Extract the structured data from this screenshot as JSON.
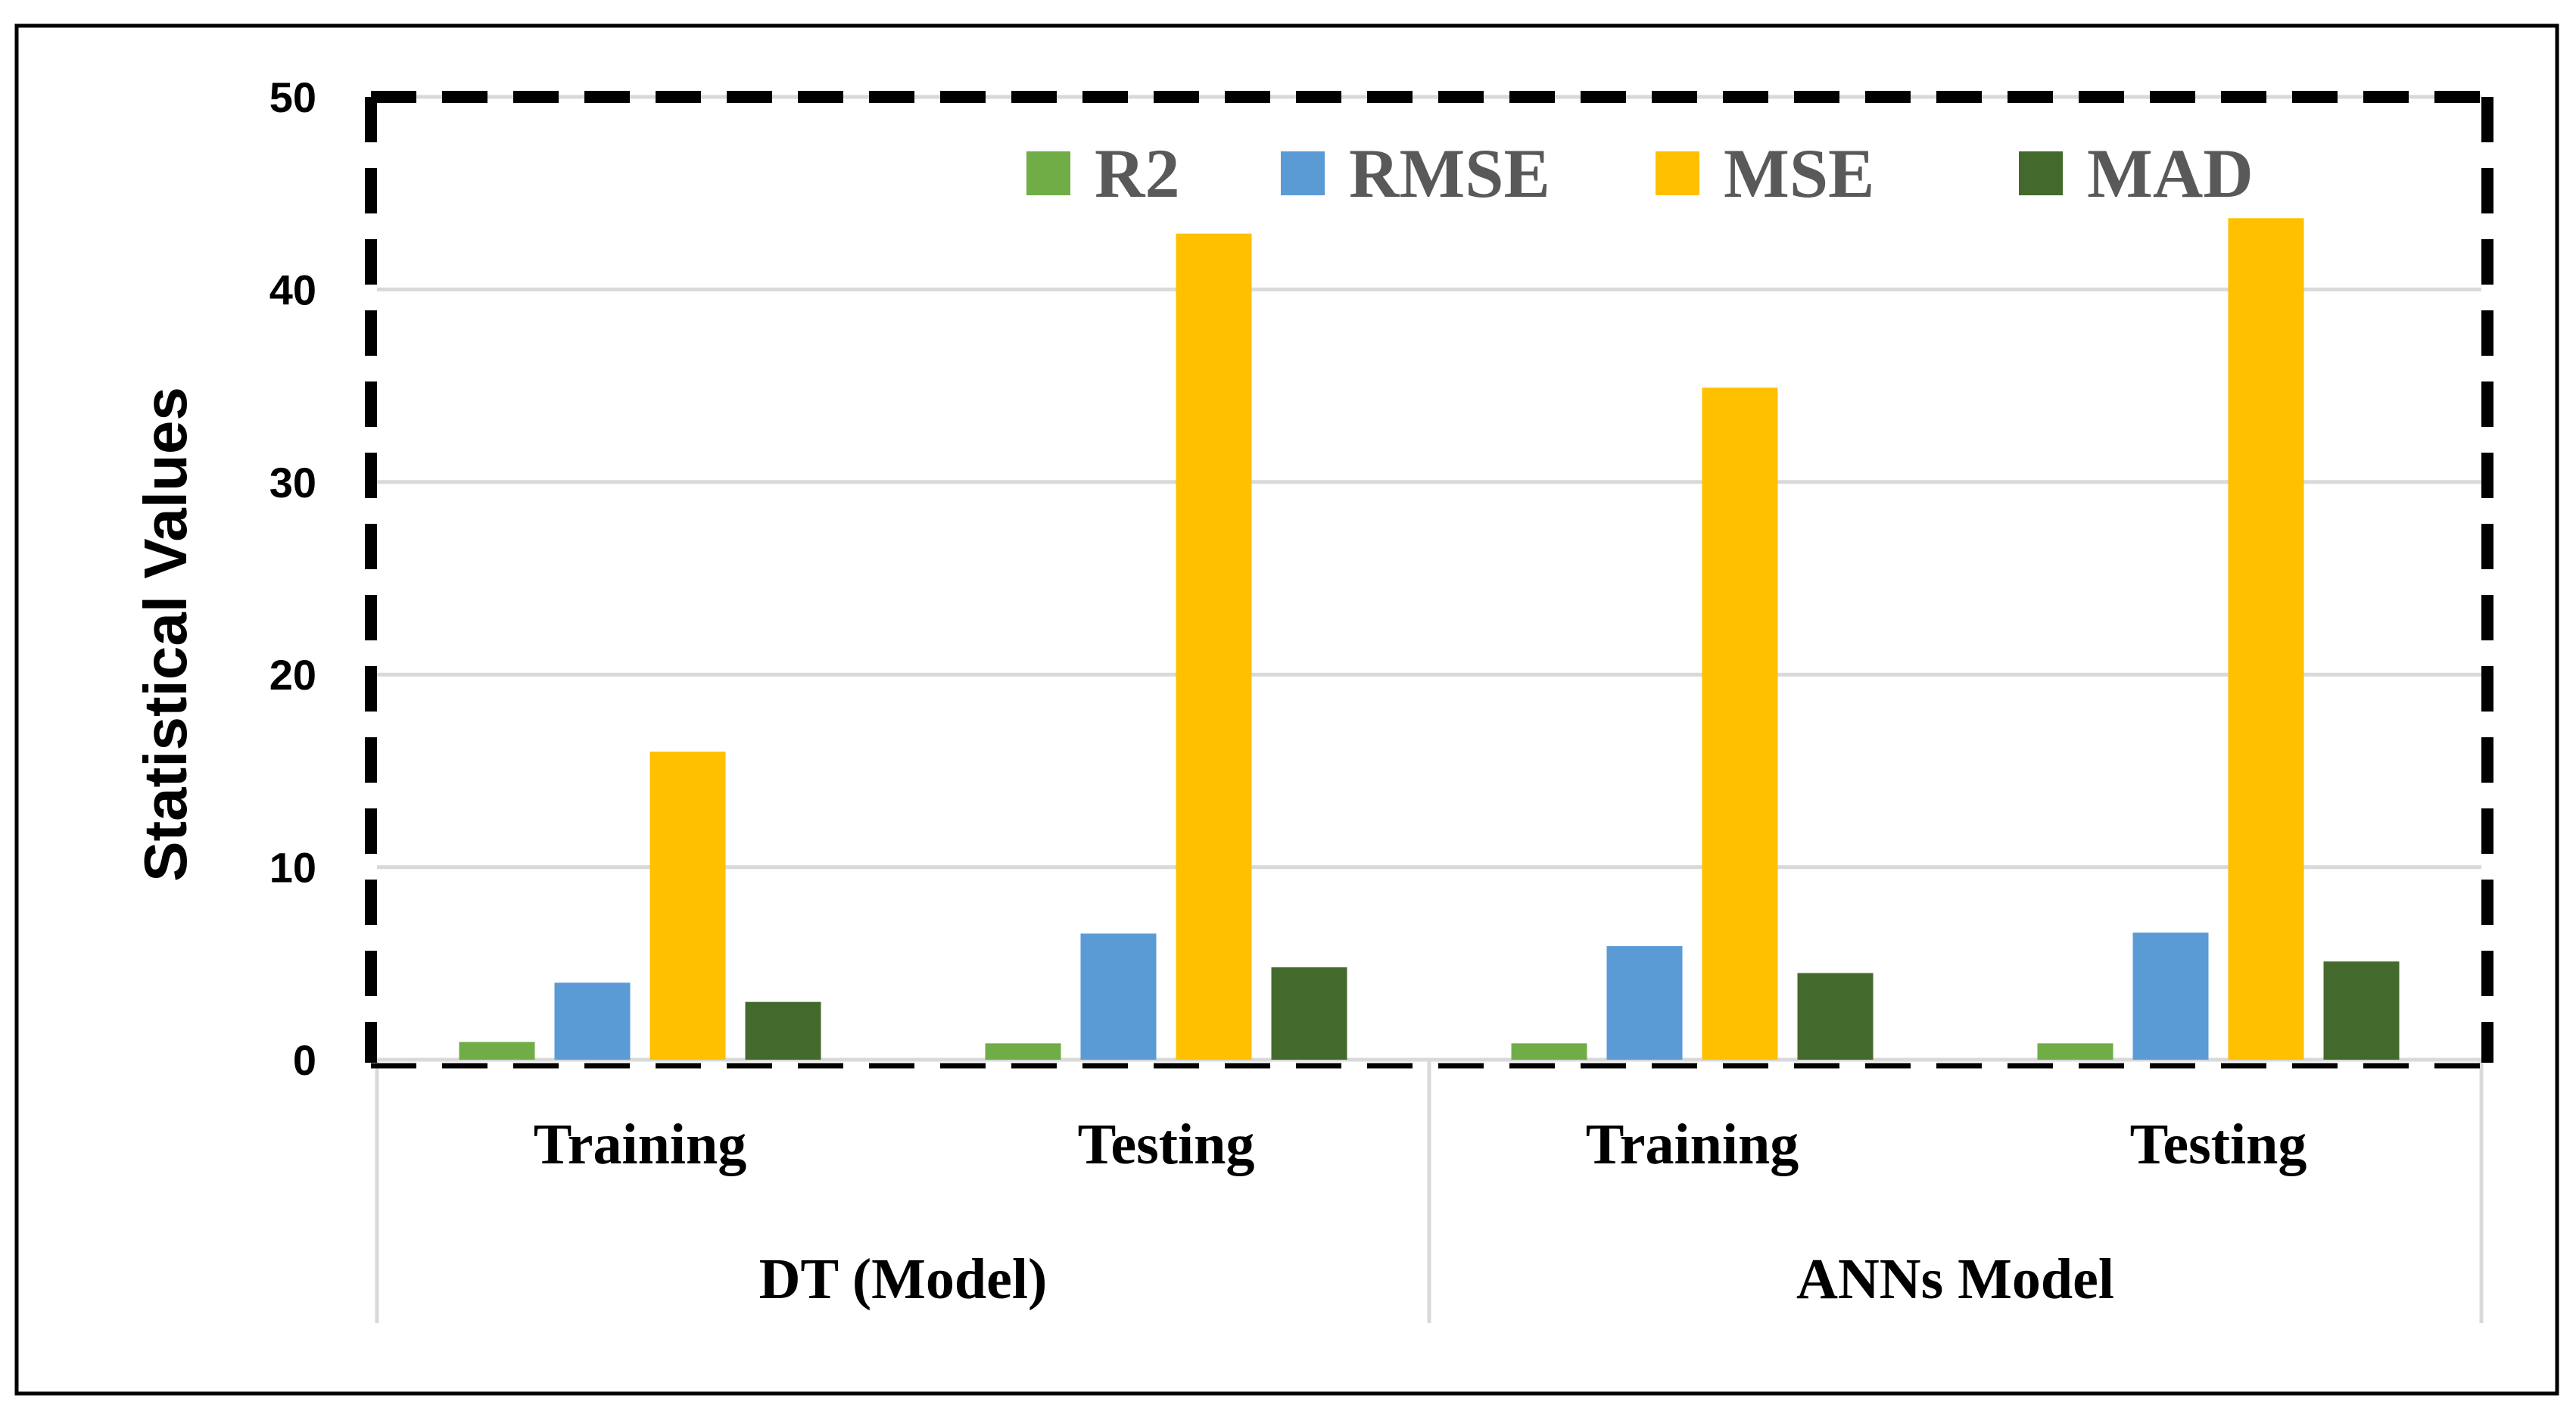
{
  "chart_data": {
    "type": "bar",
    "title": "",
    "xlabel": "",
    "ylabel": "Statistical Values",
    "ylim": [
      0,
      50
    ],
    "yticks": [
      0,
      10,
      20,
      30,
      40,
      50
    ],
    "categories": [
      "Training",
      "Testing",
      "Training",
      "Testing"
    ],
    "groups": [
      {
        "label": "DT (Model)",
        "categories": [
          "Training",
          "Testing"
        ]
      },
      {
        "label": "ANNs Model",
        "categories": [
          "Training",
          "Testing"
        ]
      }
    ],
    "series": [
      {
        "name": "R2",
        "color": "#70ad47",
        "values": [
          0.92,
          0.85,
          0.85,
          0.85
        ]
      },
      {
        "name": "RMSE",
        "color": "#5b9bd5",
        "values": [
          4.0,
          6.55,
          5.9,
          6.6
        ]
      },
      {
        "name": "MSE",
        "color": "#ffc000",
        "values": [
          16.0,
          42.9,
          34.9,
          43.7
        ]
      },
      {
        "name": "MAD",
        "color": "#44692d",
        "values": [
          3.0,
          4.8,
          4.5,
          5.1
        ]
      }
    ],
    "grid": true,
    "legend_position": "top"
  }
}
